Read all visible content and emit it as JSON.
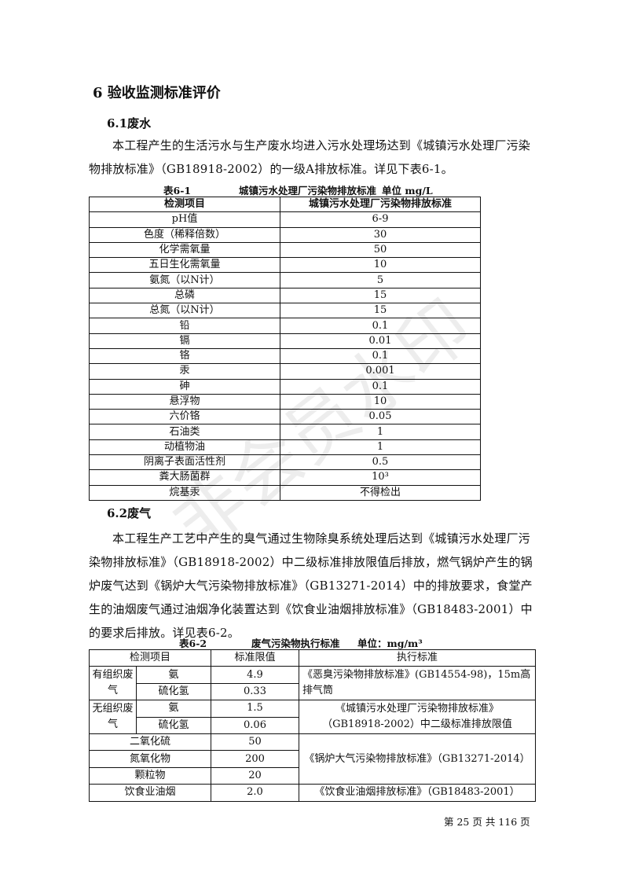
{
  "heading": "6 验收监测标准评价",
  "s1": {
    "title": "6.1废水",
    "para": "本工程产生的生活污水与生产废水均进入污水处理场达到《城镇污水处理厂污染物排放标准》（GB18918-2002）的一级A排放标准。详见下表6-1。",
    "caption": {
      "num": "表6-1",
      "title": "城镇污水处理厂污染物排放标准",
      "unit": "单位 mg/L"
    },
    "headers": [
      "检测项目",
      "城镇污水处理厂污染物排放标准"
    ],
    "rows": [
      [
        "pH值",
        "6-9"
      ],
      [
        "色度（稀释倍数）",
        "30"
      ],
      [
        "化学需氧量",
        "50"
      ],
      [
        "五日生化需氧量",
        "10"
      ],
      [
        "氨氮（以N计）",
        "5"
      ],
      [
        "总磷",
        "15"
      ],
      [
        "总氮（以N计）",
        "15"
      ],
      [
        "铅",
        "0.1"
      ],
      [
        "镉",
        "0.01"
      ],
      [
        "铬",
        "0.1"
      ],
      [
        "汞",
        "0.001"
      ],
      [
        "砷",
        "0.1"
      ],
      [
        "悬浮物",
        "10"
      ],
      [
        "六价铬",
        "0.05"
      ],
      [
        "石油类",
        "1"
      ],
      [
        "动植物油",
        "1"
      ],
      [
        "阴离子表面活性剂",
        "0.5"
      ],
      [
        "粪大肠菌群",
        "10³"
      ],
      [
        "烷基汞",
        "不得检出"
      ]
    ]
  },
  "s2": {
    "title": "6.2废气",
    "para": "本工程生产工艺中产生的臭气通过生物除臭系统处理后达到《城镇污水处理厂污染物排放标准》（GB18918-2002）中二级标准排放限值后排放，燃气锅炉产生的锅炉废气达到《锅炉大气污染物排放标准》（GB13271-2014）中的排放要求，食堂产生的油烟废气通过油烟净化装置达到《饮食业油烟排放标准》（GB18483-2001）中的要求后排放。详见表6-2。",
    "caption": {
      "num": "表6-2",
      "title": "废气污染物执行标准",
      "unit": "单位：mg/m³"
    },
    "headers": [
      "检测项目",
      "标准限值",
      "执行标准"
    ],
    "g1": "有组织废气",
    "g2": "无组织废气",
    "nh3": "氨",
    "h2s": "硫化氢",
    "v": [
      "4.9",
      "0.33",
      "1.5",
      "0.06"
    ],
    "std1": "《恶臭污染物排放标准》(GB14554-98)，15m高排气筒",
    "std2": "《城镇污水处理厂污染物排放标准》（GB18918-2002）中二级标准排放限值",
    "rows": [
      [
        "二氧化硫",
        "50"
      ],
      [
        "氮氧化物",
        "200"
      ],
      [
        "颗粒物",
        "20"
      ]
    ],
    "std3": "《锅炉大气污染物排放标准》（GB13271-2014）",
    "last": [
      "饮食业油烟",
      "2.0",
      "《饮食业油烟排放标准》（GB18483-2001）"
    ]
  },
  "footer": "第 25 页 共 116 页",
  "watermark": "非会员水印"
}
